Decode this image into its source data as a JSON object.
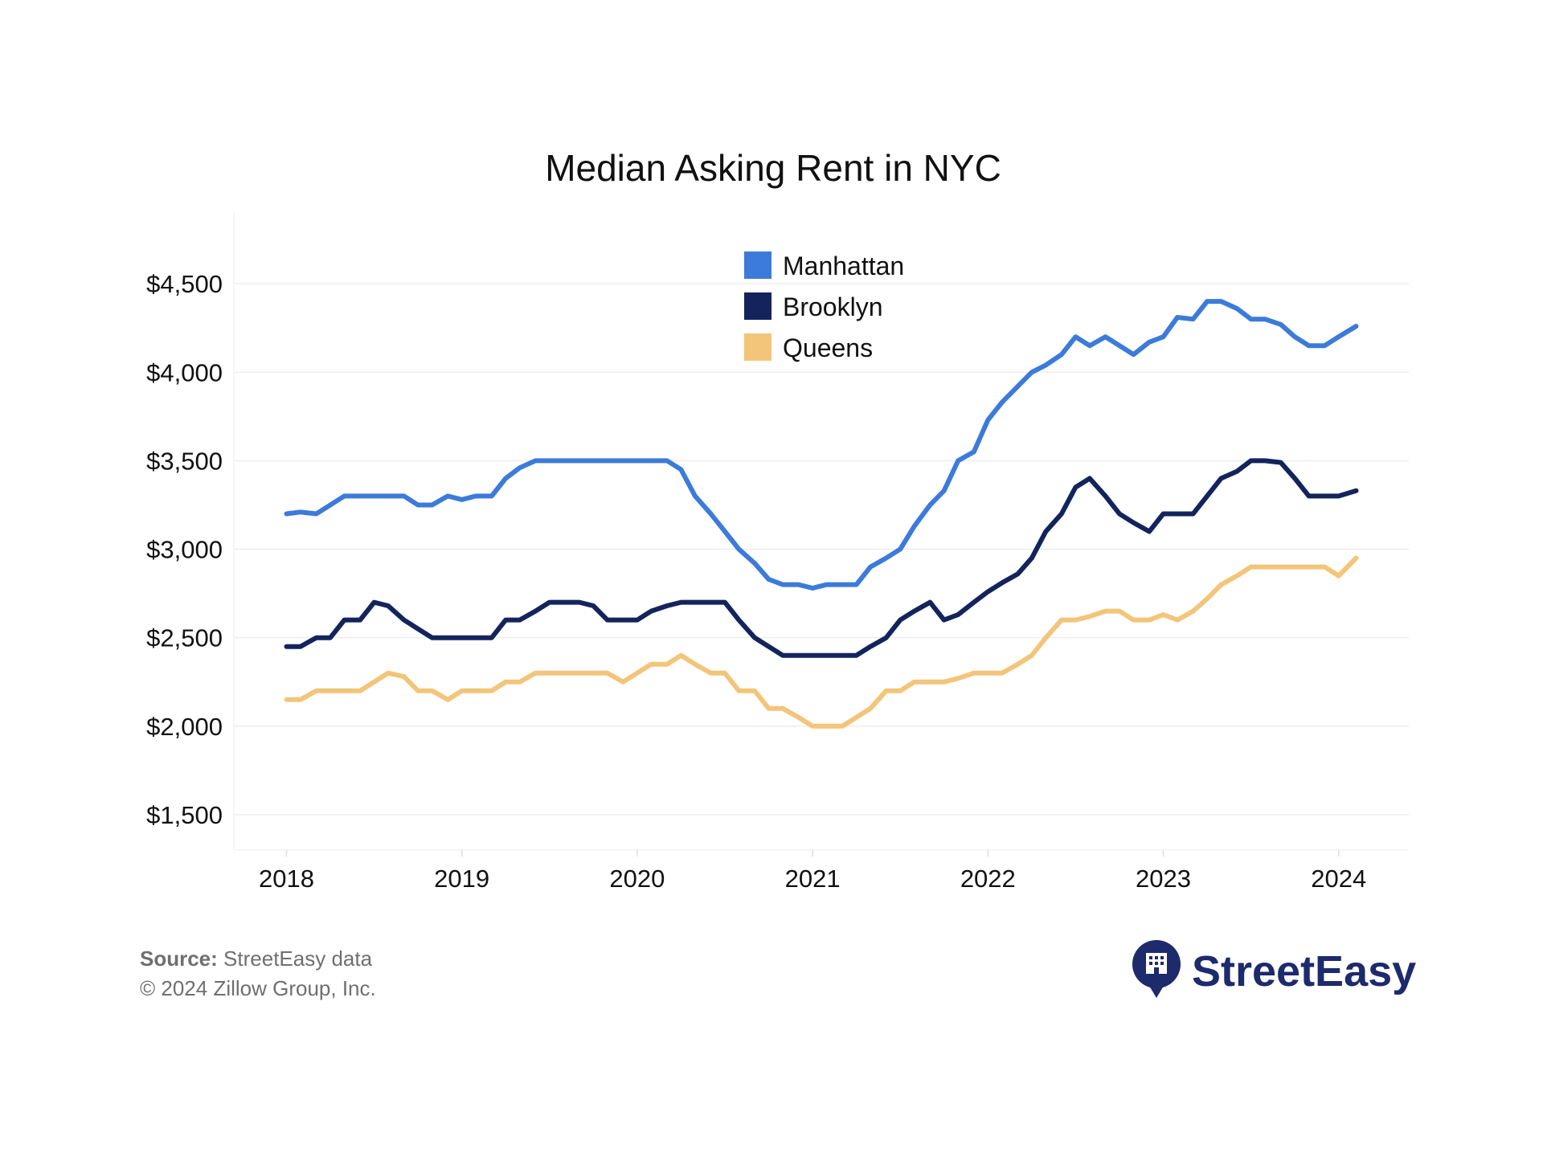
{
  "chart_data": {
    "type": "line",
    "title": "Median Asking Rent in NYC",
    "xlabel": "",
    "ylabel": "",
    "x_ticks": [
      2018,
      2019,
      2020,
      2021,
      2022,
      2023,
      2024
    ],
    "xlim": [
      2017.7,
      2024.4
    ],
    "y_ticks": [
      1500,
      2000,
      2500,
      3000,
      3500,
      4000,
      4500
    ],
    "y_tick_labels": [
      "$1,500",
      "$2,000",
      "$2,500",
      "$3,000",
      "$3,500",
      "$4,000",
      "$4,500"
    ],
    "ylim": [
      1300,
      4900
    ],
    "grid": true,
    "legend_position": "top-center",
    "series": [
      {
        "name": "Manhattan",
        "color": "#3c7bd9",
        "x": [
          2018.0,
          2018.08,
          2018.17,
          2018.25,
          2018.33,
          2018.42,
          2018.5,
          2018.58,
          2018.67,
          2018.75,
          2018.83,
          2018.92,
          2019.0,
          2019.08,
          2019.17,
          2019.25,
          2019.33,
          2019.42,
          2019.5,
          2019.58,
          2019.67,
          2019.75,
          2019.83,
          2019.92,
          2020.0,
          2020.08,
          2020.17,
          2020.25,
          2020.33,
          2020.42,
          2020.5,
          2020.58,
          2020.67,
          2020.75,
          2020.83,
          2020.92,
          2021.0,
          2021.08,
          2021.17,
          2021.25,
          2021.33,
          2021.42,
          2021.5,
          2021.58,
          2021.67,
          2021.75,
          2021.83,
          2021.92,
          2022.0,
          2022.08,
          2022.17,
          2022.25,
          2022.33,
          2022.42,
          2022.5,
          2022.58,
          2022.67,
          2022.75,
          2022.83,
          2022.92,
          2023.0,
          2023.08,
          2023.17,
          2023.25,
          2023.33,
          2023.42,
          2023.5,
          2023.58,
          2023.67,
          2023.75,
          2023.83,
          2023.92,
          2024.0,
          2024.1
        ],
        "values": [
          3200,
          3210,
          3200,
          3250,
          3300,
          3300,
          3300,
          3300,
          3300,
          3250,
          3250,
          3300,
          3280,
          3300,
          3300,
          3400,
          3460,
          3500,
          3500,
          3500,
          3500,
          3500,
          3500,
          3500,
          3500,
          3500,
          3500,
          3450,
          3300,
          3200,
          3100,
          3000,
          2920,
          2830,
          2800,
          2800,
          2780,
          2800,
          2800,
          2800,
          2900,
          2950,
          3000,
          3130,
          3250,
          3330,
          3500,
          3550,
          3730,
          3830,
          3920,
          4000,
          4040,
          4100,
          4200,
          4150,
          4200,
          4150,
          4100,
          4170,
          4200,
          4310,
          4300,
          4400,
          4400,
          4360,
          4300,
          4300,
          4270,
          4200,
          4150,
          4150,
          4200,
          4260
        ]
      },
      {
        "name": "Brooklyn",
        "color": "#13245d",
        "x": [
          2018.0,
          2018.08,
          2018.17,
          2018.25,
          2018.33,
          2018.42,
          2018.5,
          2018.58,
          2018.67,
          2018.75,
          2018.83,
          2018.92,
          2019.0,
          2019.08,
          2019.17,
          2019.25,
          2019.33,
          2019.42,
          2019.5,
          2019.58,
          2019.67,
          2019.75,
          2019.83,
          2019.92,
          2020.0,
          2020.08,
          2020.17,
          2020.25,
          2020.33,
          2020.42,
          2020.5,
          2020.58,
          2020.67,
          2020.75,
          2020.83,
          2020.92,
          2021.0,
          2021.08,
          2021.17,
          2021.25,
          2021.33,
          2021.42,
          2021.5,
          2021.58,
          2021.67,
          2021.75,
          2021.83,
          2021.92,
          2022.0,
          2022.08,
          2022.17,
          2022.25,
          2022.33,
          2022.42,
          2022.5,
          2022.58,
          2022.67,
          2022.75,
          2022.83,
          2022.92,
          2023.0,
          2023.08,
          2023.17,
          2023.25,
          2023.33,
          2023.42,
          2023.5,
          2023.58,
          2023.67,
          2023.75,
          2023.83,
          2023.92,
          2024.0,
          2024.1
        ],
        "values": [
          2450,
          2450,
          2500,
          2500,
          2600,
          2600,
          2700,
          2680,
          2600,
          2550,
          2500,
          2500,
          2500,
          2500,
          2500,
          2600,
          2600,
          2650,
          2700,
          2700,
          2700,
          2680,
          2600,
          2600,
          2600,
          2650,
          2680,
          2700,
          2700,
          2700,
          2700,
          2600,
          2500,
          2450,
          2400,
          2400,
          2400,
          2400,
          2400,
          2400,
          2450,
          2500,
          2600,
          2650,
          2700,
          2600,
          2630,
          2700,
          2760,
          2810,
          2860,
          2950,
          3100,
          3200,
          3350,
          3400,
          3300,
          3200,
          3150,
          3100,
          3200,
          3200,
          3200,
          3300,
          3400,
          3440,
          3500,
          3500,
          3490,
          3400,
          3300,
          3300,
          3300,
          3330
        ]
      },
      {
        "name": "Queens",
        "color": "#f3c57a",
        "x": [
          2018.0,
          2018.08,
          2018.17,
          2018.25,
          2018.33,
          2018.42,
          2018.5,
          2018.58,
          2018.67,
          2018.75,
          2018.83,
          2018.92,
          2019.0,
          2019.08,
          2019.17,
          2019.25,
          2019.33,
          2019.42,
          2019.5,
          2019.58,
          2019.67,
          2019.75,
          2019.83,
          2019.92,
          2020.0,
          2020.08,
          2020.17,
          2020.25,
          2020.33,
          2020.42,
          2020.5,
          2020.58,
          2020.67,
          2020.75,
          2020.83,
          2020.92,
          2021.0,
          2021.08,
          2021.17,
          2021.25,
          2021.33,
          2021.42,
          2021.5,
          2021.58,
          2021.67,
          2021.75,
          2021.83,
          2021.92,
          2022.0,
          2022.08,
          2022.17,
          2022.25,
          2022.33,
          2022.42,
          2022.5,
          2022.58,
          2022.67,
          2022.75,
          2022.83,
          2022.92,
          2023.0,
          2023.08,
          2023.17,
          2023.25,
          2023.33,
          2023.42,
          2023.5,
          2023.58,
          2023.67,
          2023.75,
          2023.83,
          2023.92,
          2024.0,
          2024.1
        ],
        "values": [
          2150,
          2150,
          2200,
          2200,
          2200,
          2200,
          2250,
          2300,
          2280,
          2200,
          2200,
          2150,
          2200,
          2200,
          2200,
          2250,
          2250,
          2300,
          2300,
          2300,
          2300,
          2300,
          2300,
          2250,
          2300,
          2350,
          2350,
          2400,
          2350,
          2300,
          2300,
          2200,
          2200,
          2100,
          2100,
          2050,
          2000,
          2000,
          2000,
          2050,
          2100,
          2200,
          2200,
          2250,
          2250,
          2250,
          2270,
          2300,
          2300,
          2300,
          2350,
          2400,
          2500,
          2600,
          2600,
          2620,
          2650,
          2650,
          2600,
          2600,
          2630,
          2600,
          2650,
          2720,
          2800,
          2850,
          2900,
          2900,
          2900,
          2900,
          2900,
          2900,
          2850,
          2950
        ]
      }
    ]
  },
  "footer": {
    "source_label": "Source:",
    "source_text": "StreetEasy data",
    "copyright": "© 2024 Zillow Group, Inc."
  },
  "brand": {
    "name": "StreetEasy",
    "logo_icon": "building-pin-icon",
    "color": "#1d2a6c"
  }
}
